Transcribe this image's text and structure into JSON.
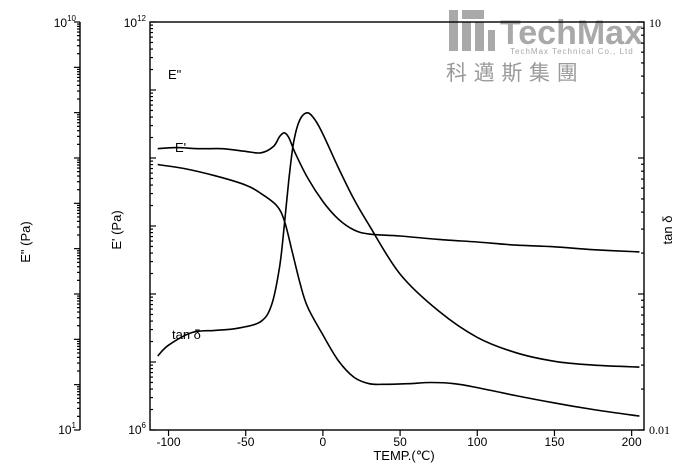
{
  "watermark": {
    "brand": "TechMax",
    "subtitle": "TechMax Technical Co., Ltd",
    "chinese": "科 邁 斯 集 團"
  },
  "chart_data": {
    "type": "line",
    "xlabel": "TEMP.(℃)",
    "x_ticks": [
      -100,
      -50,
      0,
      50,
      100,
      150,
      200
    ],
    "xlim": [
      -112,
      208
    ],
    "axes": {
      "e_double_prime": {
        "label": "E\" (Pa)",
        "top_base": "10",
        "top_exp": "10",
        "bottom": "10",
        "bottom_exp": "1",
        "scale": "log",
        "range": [
          10,
          10000000000.0
        ]
      },
      "e_prime": {
        "label": "E' (Pa)",
        "top_base": "10",
        "top_exp": "12",
        "bottom": "10",
        "bottom_exp": "6",
        "scale": "log",
        "range": [
          1000000.0,
          1000000000000.0
        ]
      },
      "tan_delta": {
        "label": "tan δ",
        "top": "10",
        "bottom": "0.01",
        "scale": "log",
        "range": [
          0.01,
          10
        ]
      }
    },
    "series": [
      {
        "name": "E\"",
        "axis": "e_double_prime",
        "x": [
          -107,
          -95,
          -80,
          -65,
          -50,
          -40,
          -32,
          -28,
          -25,
          -22,
          -18,
          -10,
          0,
          10,
          20,
          30,
          50,
          75,
          100,
          125,
          150,
          175,
          205
        ],
        "y": [
          16000000.0,
          17000000.0,
          16000000.0,
          16000000.0,
          14000000.0,
          13000000.0,
          18000000.0,
          30000000.0,
          36000000.0,
          28000000.0,
          13000000.0,
          3700000.0,
          1100000.0,
          450000.0,
          260000.0,
          210000.0,
          190000.0,
          160000.0,
          140000.0,
          120000.0,
          110000.0,
          95000.0,
          85000.0
        ]
      },
      {
        "name": "E'",
        "axis": "e_prime",
        "x": [
          -107,
          -90,
          -70,
          -50,
          -40,
          -30,
          -25,
          -20,
          -15,
          -10,
          0,
          10,
          20,
          30,
          40,
          55,
          70,
          85,
          100,
          125,
          150,
          175,
          205
        ],
        "y": [
          8000000000.0,
          7000000000.0,
          5500000000.0,
          4000000000.0,
          3000000000.0,
          2000000000.0,
          1200000000.0,
          430000000.0,
          150000000.0,
          65000000.0,
          25000000.0,
          10500000.0,
          6000000.0,
          4800000.0,
          4700000.0,
          4800000.0,
          5000000.0,
          4800000.0,
          4200000.0,
          3200000.0,
          2500000.0,
          2000000.0,
          1600000.0
        ]
      },
      {
        "name": "tan δ",
        "axis": "tan_delta",
        "x": [
          -107,
          -100,
          -85,
          -70,
          -55,
          -40,
          -33,
          -28,
          -25,
          -22,
          -19,
          -15,
          -10,
          -5,
          0,
          10,
          20,
          30,
          50,
          75,
          100,
          125,
          150,
          175,
          205
        ],
        "y": [
          0.035,
          0.042,
          0.052,
          0.054,
          0.056,
          0.063,
          0.085,
          0.16,
          0.32,
          0.7,
          1.3,
          1.9,
          2.15,
          1.9,
          1.5,
          0.85,
          0.5,
          0.32,
          0.14,
          0.075,
          0.048,
          0.037,
          0.032,
          0.03,
          0.029
        ]
      }
    ],
    "curve_labels": [
      "E\"",
      "E'",
      "tan δ"
    ],
    "grid": false,
    "legend": "none"
  }
}
